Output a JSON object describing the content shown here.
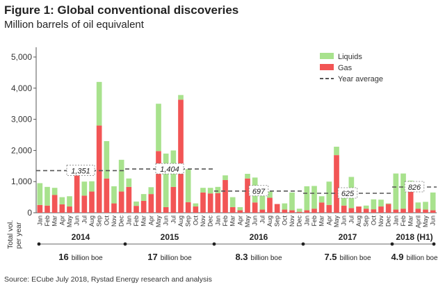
{
  "figure": {
    "title": "Figure 1: Global conventional discoveries",
    "subtitle": "Million barrels of oil equivalent",
    "source": "Source: ECube July 2018, Rystad Energy research and analysis"
  },
  "chart_data": {
    "type": "bar",
    "stacked": true,
    "ylim": [
      0,
      5000
    ],
    "yticks": [
      0,
      1000,
      2000,
      3000,
      4000,
      5000
    ],
    "ytick_labels": [
      "0",
      "1,000",
      "2,000",
      "3,000",
      "4,000",
      "5,000"
    ],
    "grid": false,
    "legend_position": "top-right",
    "categories": [
      "Jan",
      "Feb",
      "Mar",
      "Apr",
      "May",
      "Jun",
      "Jul",
      "Aug",
      "Sep",
      "Oct",
      "Nov",
      "Dec",
      "Jan",
      "Feb",
      "Mar",
      "Apr",
      "May",
      "Jun",
      "Jul",
      "Aug",
      "Sep",
      "Oct",
      "Nov",
      "Dec",
      "Jan",
      "Feb",
      "Mar",
      "Apr",
      "May",
      "Jun",
      "Jul",
      "Aug",
      "Sep",
      "Oct",
      "Nov",
      "Dec",
      "Jan",
      "Feb",
      "Mar",
      "Apr",
      "May",
      "Jun",
      "Jul",
      "Aug",
      "Sep",
      "Oct",
      "Nov",
      "Dec",
      "Jan",
      "Feb",
      "Mar",
      "April",
      "May",
      "Jun"
    ],
    "series": [
      {
        "name": "Gas",
        "color": "#f25555",
        "values": [
          250,
          230,
          570,
          270,
          200,
          1230,
          550,
          680,
          2800,
          1100,
          300,
          680,
          830,
          220,
          380,
          600,
          1980,
          180,
          830,
          3630,
          340,
          200,
          650,
          620,
          630,
          1050,
          180,
          80,
          1100,
          330,
          100,
          480,
          280,
          100,
          80,
          30,
          80,
          130,
          330,
          250,
          1850,
          230,
          150,
          200,
          130,
          110,
          200,
          280,
          100,
          130,
          700,
          130,
          100,
          80
        ]
      },
      {
        "name": "Liquids",
        "color": "#a8e28d",
        "values": [
          700,
          600,
          230,
          230,
          330,
          0,
          450,
          330,
          1400,
          1200,
          550,
          1020,
          270,
          140,
          220,
          220,
          1520,
          1720,
          1170,
          150,
          1060,
          100,
          150,
          180,
          200,
          150,
          320,
          100,
          150,
          800,
          500,
          200,
          0,
          200,
          570,
          100,
          770,
          730,
          200,
          750,
          270,
          570,
          1000,
          0,
          100,
          320,
          220,
          20,
          1160,
          1130,
          330,
          200,
          250,
          570
        ]
      }
    ],
    "year_average": {
      "name": "Year average",
      "segments": [
        {
          "year": "2014",
          "value": 1351,
          "label": "1,351"
        },
        {
          "year": "2015",
          "value": 1404,
          "label": "1,404"
        },
        {
          "year": "2016",
          "value": 697,
          "label": "697"
        },
        {
          "year": "2017",
          "value": 625,
          "label": "625"
        },
        {
          "year": "2018 (H1)",
          "value": 826,
          "label": "826"
        }
      ]
    },
    "total_vol_label": [
      "Total vol.",
      "per year"
    ],
    "year_totals": [
      {
        "year": "2014",
        "total": "16",
        "unit": "billion boe"
      },
      {
        "year": "2015",
        "total": "17",
        "unit": "billion boe"
      },
      {
        "year": "2016",
        "total": "8.3",
        "unit": "billion boe"
      },
      {
        "year": "2017",
        "total": "7.5",
        "unit": "billion boe"
      },
      {
        "year": "2018 (H1)",
        "total": "4.9",
        "unit": "billion boe"
      }
    ]
  }
}
